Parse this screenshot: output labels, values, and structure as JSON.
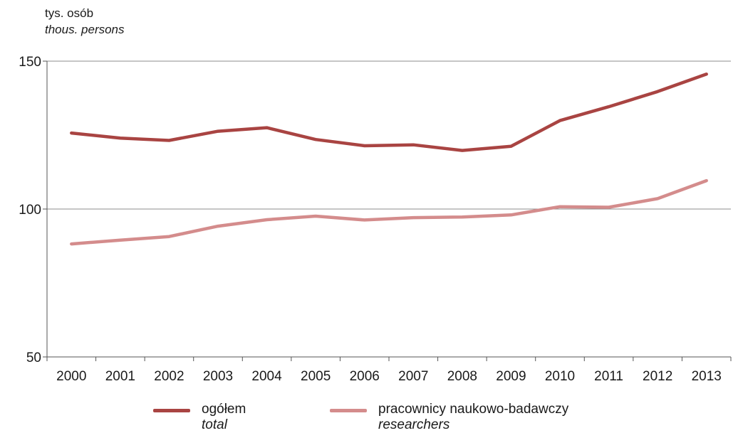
{
  "chart_data": {
    "type": "line",
    "unit_label_pl": "tys. osób",
    "unit_label_en": "thous. persons",
    "x": [
      "2000",
      "2001",
      "2002",
      "2003",
      "2004",
      "2005",
      "2006",
      "2007",
      "2008",
      "2009",
      "2010",
      "2011",
      "2012",
      "2013"
    ],
    "ylim": [
      50,
      150
    ],
    "yticks": [
      50,
      100,
      150
    ],
    "grid": true,
    "series": [
      {
        "name_pl": "ogółem",
        "name_en": "total",
        "color": "#a94442",
        "values": [
          125.7,
          124.0,
          123.2,
          126.3,
          127.5,
          123.5,
          121.4,
          121.7,
          119.8,
          121.2,
          129.9,
          134.6,
          139.7,
          145.6
        ]
      },
      {
        "name_pl": "pracownicy naukowo-badawczy",
        "name_en": "researchers",
        "color": "#d48c8c",
        "values": [
          88.2,
          89.5,
          90.7,
          94.2,
          96.4,
          97.6,
          96.3,
          97.1,
          97.3,
          98.0,
          100.8,
          100.6,
          103.5,
          109.6
        ]
      }
    ]
  }
}
